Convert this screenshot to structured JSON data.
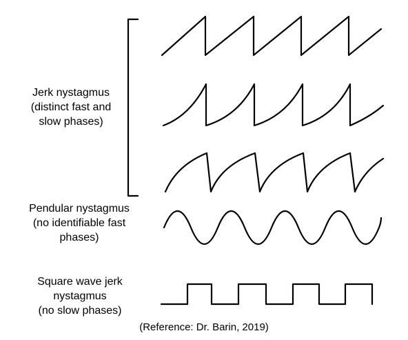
{
  "labels": {
    "jerk": [
      "Jerk nystagmus",
      "(distinct fast and",
      "slow phases)"
    ],
    "pendular": [
      "Pendular nystagmus",
      "(no identifiable fast",
      "phases)"
    ],
    "square": [
      "Square wave jerk",
      "nystagmus",
      "(no slow phases)"
    ]
  },
  "reference": "(Reference: Dr. Barin, 2019)",
  "colors": {
    "line": "#000000",
    "background": "#ffffff"
  }
}
